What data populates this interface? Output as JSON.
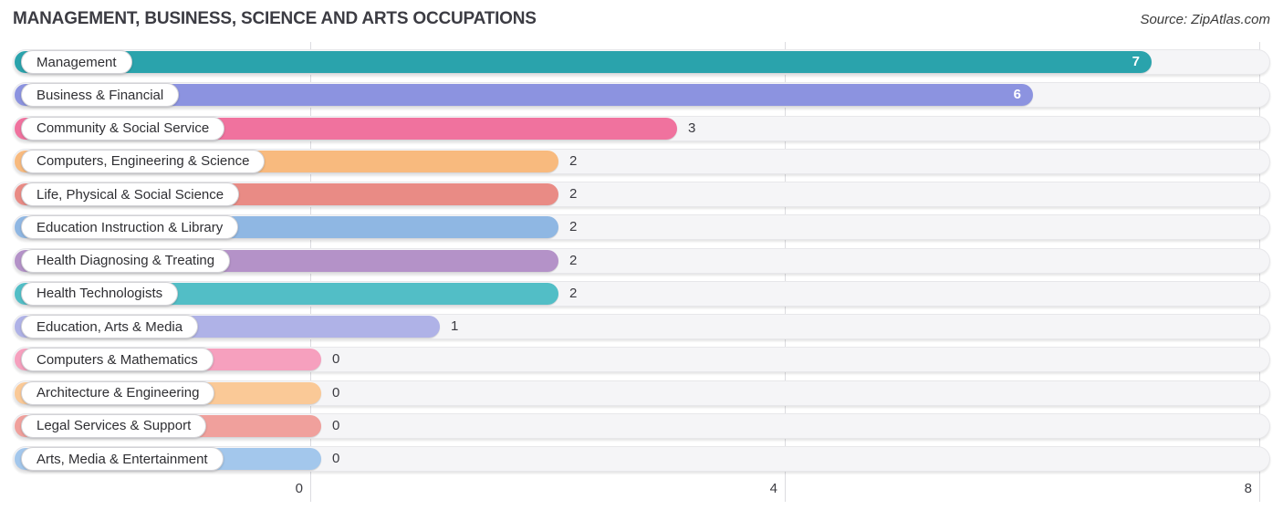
{
  "header": {
    "title": "MANAGEMENT, BUSINESS, SCIENCE AND ARTS OCCUPATIONS",
    "source": "Source: ZipAtlas.com"
  },
  "chart_data": {
    "type": "bar",
    "orientation": "horizontal",
    "title": "MANAGEMENT, BUSINESS, SCIENCE AND ARTS OCCUPATIONS",
    "source": "Source: ZipAtlas.com",
    "xlim": [
      0,
      8
    ],
    "x_ticks": [
      0,
      4,
      8
    ],
    "grid": true,
    "legend": false,
    "categories": [
      "Management",
      "Business & Financial",
      "Community & Social Service",
      "Computers, Engineering & Science",
      "Life, Physical & Social Science",
      "Education Instruction & Library",
      "Health Diagnosing & Treating",
      "Health Technologists",
      "Education, Arts & Media",
      "Computers & Mathematics",
      "Architecture & Engineering",
      "Legal Services & Support",
      "Arts, Media & Entertainment"
    ],
    "values": [
      7,
      6,
      3,
      2,
      2,
      2,
      2,
      2,
      1,
      0,
      0,
      0,
      0
    ],
    "bar_colors": [
      "#2AA3AC",
      "#8C93E0",
      "#F0729E",
      "#F8BA7E",
      "#E98B85",
      "#8FB7E3",
      "#B492C8",
      "#52BEC6",
      "#AFB2E7",
      "#F6A0BE",
      "#FAC997",
      "#F0A09C",
      "#A3C7EC"
    ]
  }
}
